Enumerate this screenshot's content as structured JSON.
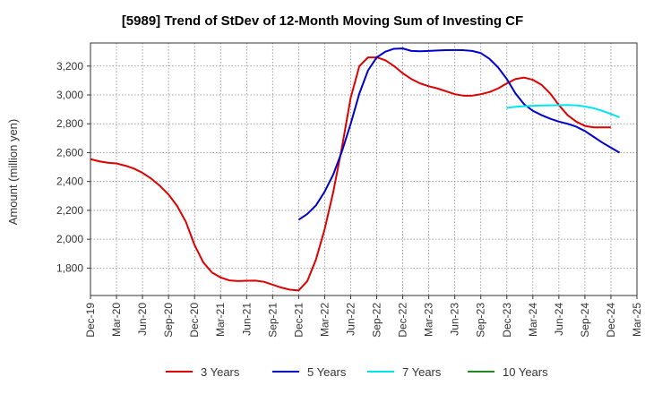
{
  "chart_data": {
    "type": "line",
    "title": "[5989]  Trend of StDev of 12-Month Moving Sum of Investing CF",
    "xlabel": "",
    "ylabel": "Amount (million yen)",
    "x_ticks": [
      "Dec-19",
      "Mar-20",
      "Jun-20",
      "Sep-20",
      "Dec-20",
      "Mar-21",
      "Jun-21",
      "Sep-21",
      "Dec-21",
      "Mar-22",
      "Jun-22",
      "Sep-22",
      "Dec-22",
      "Mar-23",
      "Jun-23",
      "Sep-23",
      "Dec-23",
      "Mar-24",
      "Jun-24",
      "Sep-24",
      "Dec-24",
      "Mar-25"
    ],
    "y_ticks": [
      1800,
      2000,
      2200,
      2400,
      2600,
      2800,
      3000,
      3200
    ],
    "ylim": [
      1610,
      3360
    ],
    "grid": true,
    "legend_position": "bottom",
    "series": [
      {
        "name": "3 Years",
        "color": "#dd0000",
        "points": [
          [
            0,
            2555
          ],
          [
            1,
            2540
          ],
          [
            2,
            2530
          ],
          [
            3,
            2525
          ],
          [
            4,
            2510
          ],
          [
            5,
            2490
          ],
          [
            6,
            2460
          ],
          [
            7,
            2420
          ],
          [
            8,
            2370
          ],
          [
            9,
            2310
          ],
          [
            10,
            2230
          ],
          [
            11,
            2120
          ],
          [
            12,
            1960
          ],
          [
            13,
            1840
          ],
          [
            14,
            1770
          ],
          [
            15,
            1735
          ],
          [
            16,
            1715
          ],
          [
            17,
            1710
          ],
          [
            18,
            1712
          ],
          [
            19,
            1713
          ],
          [
            20,
            1705
          ],
          [
            21,
            1685
          ],
          [
            22,
            1665
          ],
          [
            23,
            1650
          ],
          [
            24,
            1645
          ],
          [
            25,
            1710
          ],
          [
            26,
            1860
          ],
          [
            27,
            2070
          ],
          [
            28,
            2330
          ],
          [
            29,
            2640
          ],
          [
            30,
            2980
          ],
          [
            31,
            3200
          ],
          [
            32,
            3260
          ],
          [
            33,
            3260
          ],
          [
            34,
            3240
          ],
          [
            35,
            3200
          ],
          [
            36,
            3150
          ],
          [
            37,
            3110
          ],
          [
            38,
            3080
          ],
          [
            39,
            3060
          ],
          [
            40,
            3045
          ],
          [
            41,
            3025
          ],
          [
            42,
            3005
          ],
          [
            43,
            2995
          ],
          [
            44,
            2995
          ],
          [
            45,
            3005
          ],
          [
            46,
            3020
          ],
          [
            47,
            3045
          ],
          [
            48,
            3080
          ],
          [
            49,
            3110
          ],
          [
            50,
            3120
          ],
          [
            51,
            3105
          ],
          [
            52,
            3070
          ],
          [
            53,
            3010
          ],
          [
            54,
            2930
          ],
          [
            55,
            2860
          ],
          [
            56,
            2815
          ],
          [
            57,
            2785
          ],
          [
            58,
            2775
          ],
          [
            59,
            2775
          ],
          [
            60,
            2775
          ]
        ]
      },
      {
        "name": "5 Years",
        "color": "#0000cc",
        "points": [
          [
            24,
            2135
          ],
          [
            25,
            2175
          ],
          [
            26,
            2235
          ],
          [
            27,
            2330
          ],
          [
            28,
            2450
          ],
          [
            29,
            2610
          ],
          [
            30,
            2800
          ],
          [
            31,
            3010
          ],
          [
            32,
            3170
          ],
          [
            33,
            3260
          ],
          [
            34,
            3300
          ],
          [
            35,
            3320
          ],
          [
            36,
            3322
          ],
          [
            37,
            3305
          ],
          [
            38,
            3303
          ],
          [
            39,
            3305
          ],
          [
            40,
            3308
          ],
          [
            41,
            3310
          ],
          [
            42,
            3311
          ],
          [
            43,
            3310
          ],
          [
            44,
            3305
          ],
          [
            45,
            3290
          ],
          [
            46,
            3250
          ],
          [
            47,
            3190
          ],
          [
            48,
            3110
          ],
          [
            49,
            3010
          ],
          [
            50,
            2935
          ],
          [
            51,
            2890
          ],
          [
            52,
            2860
          ],
          [
            53,
            2835
          ],
          [
            54,
            2815
          ],
          [
            55,
            2800
          ],
          [
            56,
            2780
          ],
          [
            57,
            2750
          ],
          [
            58,
            2710
          ],
          [
            59,
            2670
          ],
          [
            60,
            2635
          ],
          [
            61,
            2600
          ]
        ]
      },
      {
        "name": "7 Years",
        "color": "#00e5ee",
        "points": [
          [
            48,
            2910
          ],
          [
            49,
            2918
          ],
          [
            50,
            2922
          ],
          [
            51,
            2925
          ],
          [
            52,
            2927
          ],
          [
            53,
            2928
          ],
          [
            54,
            2929
          ],
          [
            55,
            2930
          ],
          [
            56,
            2928
          ],
          [
            57,
            2920
          ],
          [
            58,
            2908
          ],
          [
            59,
            2890
          ],
          [
            60,
            2868
          ],
          [
            61,
            2845
          ]
        ]
      },
      {
        "name": "10 Years",
        "color": "#228822",
        "points": []
      }
    ]
  }
}
